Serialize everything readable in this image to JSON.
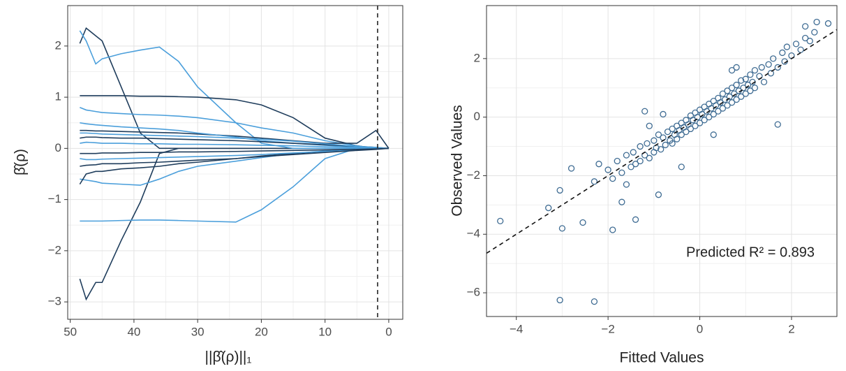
{
  "chart_data": [
    {
      "type": "line",
      "xlabel": "||β̂(ρ)||₁",
      "ylabel": "β̂(ρ)",
      "xlim": [
        50.4,
        -2.2
      ],
      "ylim": [
        -3.34,
        2.79
      ],
      "xticks": [
        50,
        40,
        30,
        20,
        10,
        0
      ],
      "yticks": [
        {
          "value": -3,
          "label": "−3"
        },
        {
          "value": -2,
          "label": "−2"
        },
        {
          "value": -1,
          "label": "−1"
        },
        0,
        1,
        2
      ],
      "grid": true,
      "vline": 1.75,
      "x": [
        48.5,
        47.5,
        46,
        45,
        42,
        39,
        36,
        33,
        30,
        24,
        20,
        15,
        10,
        5,
        2,
        0
      ],
      "series": [
        {
          "color": "#1f3d5c",
          "values": [
            2.05,
            2.35,
            2.2,
            2.1,
            1.2,
            0.3,
            0,
            0,
            0,
            0,
            0,
            0,
            0,
            0,
            0,
            0
          ]
        },
        {
          "color": "#1f3d5c",
          "values": [
            -2.55,
            -2.95,
            -2.62,
            -2.62,
            -1.8,
            -1.05,
            -0.1,
            0,
            0,
            0,
            0,
            0,
            0,
            0,
            0,
            0
          ]
        },
        {
          "color": "#4b9fdb",
          "values": [
            2.3,
            2.1,
            1.65,
            1.75,
            1.85,
            1.92,
            1.98,
            1.7,
            1.2,
            0.5,
            0.1,
            0,
            0,
            0,
            0,
            0
          ]
        },
        {
          "color": "#4b9fdb",
          "values": [
            -1.42,
            -1.42,
            -1.42,
            -1.42,
            -1.41,
            -1.4,
            -1.4,
            -1.41,
            -1.42,
            -1.44,
            -1.2,
            -0.75,
            -0.2,
            0,
            0,
            0
          ]
        },
        {
          "color": "#1f3d5c",
          "values": [
            1.03,
            1.03,
            1.03,
            1.03,
            1.03,
            1.02,
            1.02,
            1.01,
            1.0,
            0.95,
            0.85,
            0.6,
            0.2,
            0.05,
            0,
            0
          ]
        },
        {
          "color": "#4b9fdb",
          "values": [
            0.8,
            0.75,
            0.72,
            0.7,
            0.68,
            0.66,
            0.65,
            0.63,
            0.6,
            0.5,
            0.4,
            0.3,
            0.15,
            0.05,
            0,
            0
          ]
        },
        {
          "color": "#1f3d5c",
          "values": [
            0.35,
            0.35,
            0.34,
            0.34,
            0.33,
            0.32,
            0.31,
            0.3,
            0.28,
            0.24,
            0.2,
            0.15,
            0.1,
            0.1,
            0.35,
            0
          ]
        },
        {
          "color": "#4b9fdb",
          "values": [
            -0.6,
            -0.62,
            -0.65,
            -0.68,
            -0.7,
            -0.72,
            -0.6,
            -0.45,
            -0.35,
            -0.25,
            -0.18,
            -0.1,
            -0.05,
            -0.02,
            0,
            0
          ]
        },
        {
          "color": "#1f3d5c",
          "values": [
            -0.7,
            -0.5,
            -0.45,
            -0.45,
            -0.4,
            -0.38,
            -0.35,
            -0.3,
            -0.27,
            -0.2,
            -0.15,
            -0.1,
            -0.06,
            -0.03,
            -0.01,
            0
          ]
        },
        {
          "color": "#4b9fdb",
          "values": [
            0.5,
            0.48,
            0.46,
            0.45,
            0.42,
            0.4,
            0.38,
            0.35,
            0.3,
            0.22,
            0.15,
            0.1,
            0.06,
            0.03,
            0.01,
            0
          ]
        },
        {
          "color": "#1f3d5c",
          "values": [
            0.2,
            0.22,
            0.22,
            0.21,
            0.2,
            0.2,
            0.19,
            0.18,
            0.17,
            0.15,
            0.13,
            0.1,
            0.07,
            0.04,
            0.02,
            0
          ]
        },
        {
          "color": "#4b9fdb",
          "values": [
            -0.2,
            -0.22,
            -0.22,
            -0.21,
            -0.2,
            -0.19,
            -0.18,
            -0.17,
            -0.16,
            -0.14,
            -0.12,
            -0.09,
            -0.06,
            -0.03,
            -0.01,
            0
          ]
        },
        {
          "color": "#4b9fdb",
          "values": [
            0.1,
            0.12,
            0.11,
            0.1,
            0.1,
            0.09,
            0.09,
            0.08,
            0.08,
            0.07,
            0.06,
            0.05,
            0.03,
            0.02,
            0.01,
            0
          ]
        },
        {
          "color": "#1f3d5c",
          "values": [
            -0.35,
            -0.33,
            -0.32,
            -0.3,
            -0.3,
            -0.28,
            -0.27,
            -0.25,
            -0.23,
            -0.2,
            -0.16,
            -0.12,
            -0.08,
            -0.04,
            -0.02,
            0
          ]
        },
        {
          "color": "#4b9fdb",
          "values": [
            0.3,
            0.3,
            0.29,
            0.28,
            0.27,
            0.26,
            0.25,
            0.24,
            0.23,
            0.2,
            0.18,
            0.14,
            0.09,
            0.04,
            0.02,
            0
          ]
        },
        {
          "color": "#1f3d5c",
          "values": [
            -0.1,
            -0.1,
            -0.1,
            -0.09,
            -0.09,
            -0.08,
            -0.08,
            -0.07,
            -0.07,
            -0.06,
            -0.05,
            -0.04,
            -0.03,
            -0.02,
            -0.01,
            0
          ]
        }
      ]
    },
    {
      "type": "scatter",
      "xlabel": "Fitted Values",
      "ylabel": "Observed Values",
      "annotation": "Predicted R² = 0.893",
      "xlim": [
        -4.65,
        2.99
      ],
      "ylim": [
        -6.81,
        3.81
      ],
      "xticks": [
        {
          "value": -4,
          "label": "−4"
        },
        {
          "value": -2,
          "label": "−2"
        },
        0,
        2
      ],
      "yticks": [
        {
          "value": -6,
          "label": "−6"
        },
        {
          "value": -4,
          "label": "−4"
        },
        {
          "value": -2,
          "label": "−2"
        },
        0,
        2
      ],
      "grid": true,
      "color": "#3f6c93",
      "abline": {
        "intercept": 0,
        "slope": 1
      },
      "x": [
        -4.35,
        -3.05,
        -2.3,
        -3.0,
        -3.3,
        -1.9,
        -2.8,
        -2.55,
        -3.05,
        -1.4,
        -1.7,
        -0.9,
        -0.4,
        1.7,
        2.55,
        2.8,
        2.3,
        0.7,
        -1.2,
        -2.0,
        -1.9,
        -1.8,
        -1.7,
        -1.6,
        -1.5,
        -1.45,
        -1.4,
        -1.3,
        -1.3,
        -1.2,
        -1.15,
        -1.1,
        -1.0,
        -1.0,
        -0.95,
        -0.9,
        -0.85,
        -0.8,
        -0.75,
        -0.7,
        -0.65,
        -0.6,
        -0.6,
        -0.55,
        -0.5,
        -0.5,
        -0.45,
        -0.4,
        -0.4,
        -0.35,
        -0.3,
        -0.3,
        -0.25,
        -0.2,
        -0.2,
        -0.15,
        -0.1,
        -0.1,
        -0.05,
        0.0,
        0.0,
        0.05,
        0.1,
        0.1,
        0.15,
        0.2,
        0.2,
        0.25,
        0.3,
        0.3,
        0.35,
        0.4,
        0.4,
        0.45,
        0.5,
        0.5,
        0.55,
        0.6,
        0.6,
        0.65,
        0.7,
        0.7,
        0.75,
        0.8,
        0.8,
        0.85,
        0.9,
        0.9,
        0.95,
        1.0,
        1.0,
        1.05,
        1.1,
        1.1,
        1.15,
        1.2,
        1.2,
        1.3,
        1.35,
        1.4,
        1.5,
        1.55,
        1.6,
        1.7,
        1.8,
        1.85,
        1.9,
        2.0,
        2.1,
        2.2,
        2.3,
        2.4,
        2.5,
        -2.3,
        -2.2,
        -1.6,
        -1.1,
        0.3,
        0.8,
        -0.8
      ],
      "values": [
        -3.55,
        -6.25,
        -6.3,
        -3.8,
        -3.1,
        -3.85,
        -1.75,
        -3.6,
        -2.5,
        -3.5,
        -2.9,
        -2.65,
        -1.7,
        -0.25,
        3.25,
        3.2,
        3.1,
        1.6,
        0.2,
        -1.8,
        -2.1,
        -1.5,
        -1.9,
        -1.3,
        -1.7,
        -1.2,
        -1.6,
        -1.0,
        -1.5,
        -1.3,
        -0.9,
        -1.4,
        -0.8,
        -1.2,
        -1.05,
        -0.6,
        -1.1,
        -0.7,
        -0.95,
        -0.5,
        -0.8,
        -0.4,
        -0.9,
        -0.6,
        -0.3,
        -0.75,
        -0.45,
        -0.2,
        -0.6,
        -0.35,
        -0.1,
        -0.5,
        -0.25,
        0.05,
        -0.4,
        -0.1,
        0.15,
        -0.3,
        0.0,
        0.25,
        -0.2,
        0.1,
        0.35,
        -0.1,
        0.2,
        0.45,
        0.0,
        0.3,
        0.55,
        0.1,
        0.4,
        0.65,
        0.2,
        0.5,
        0.8,
        0.3,
        0.6,
        0.9,
        0.4,
        0.7,
        1.0,
        0.5,
        0.8,
        1.1,
        0.6,
        0.9,
        1.25,
        0.7,
        1.0,
        1.3,
        0.8,
        1.1,
        1.45,
        0.9,
        1.2,
        1.6,
        1.0,
        1.4,
        1.7,
        1.2,
        1.8,
        1.5,
        2.0,
        1.7,
        2.2,
        1.9,
        2.4,
        2.1,
        2.5,
        2.3,
        2.7,
        2.6,
        2.9,
        -2.2,
        -1.6,
        -2.3,
        -0.3,
        -0.6,
        1.7,
        0.1
      ]
    }
  ]
}
